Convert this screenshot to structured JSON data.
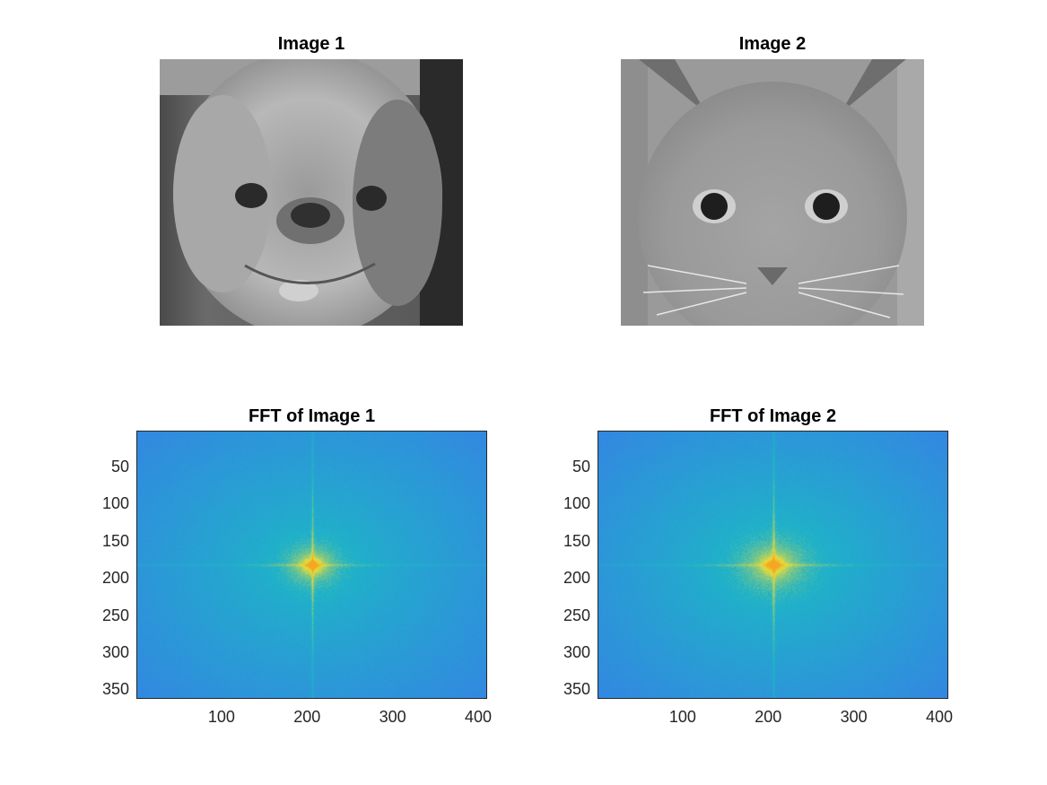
{
  "figure": {
    "subplots": [
      {
        "title": "Image 1"
      },
      {
        "title": "Image 2"
      },
      {
        "title": "FFT of Image 1"
      },
      {
        "title": "FFT of Image 2"
      }
    ]
  },
  "chart_data": [
    {
      "type": "image",
      "title": "Image 1",
      "content": "grayscale photograph of a dog face"
    },
    {
      "type": "image",
      "title": "Image 2",
      "content": "grayscale photograph of a kitten face"
    },
    {
      "type": "heatmap",
      "title": "FFT of Image 1",
      "xlim": [
        0.5,
        410.5
      ],
      "ylim": [
        0.5,
        361.5
      ],
      "y_reversed": true,
      "xticks": [
        100,
        200,
        300,
        400
      ],
      "yticks": [
        50,
        100,
        150,
        200,
        250,
        300,
        350
      ],
      "peak": {
        "x": 206,
        "y": 181
      },
      "colormap": "parula",
      "colors": {
        "low": "#3f6ef0",
        "mid": "#1fb3c8",
        "high": "#f5a623"
      }
    },
    {
      "type": "heatmap",
      "title": "FFT of Image 2",
      "xlim": [
        0.5,
        410.5
      ],
      "ylim": [
        0.5,
        361.5
      ],
      "y_reversed": true,
      "xticks": [
        100,
        200,
        300,
        400
      ],
      "yticks": [
        50,
        100,
        150,
        200,
        250,
        300,
        350
      ],
      "peak": {
        "x": 206,
        "y": 181
      },
      "colormap": "parula",
      "colors": {
        "low": "#3f6ef0",
        "mid": "#1fb3c8",
        "high": "#f5a623"
      }
    }
  ]
}
